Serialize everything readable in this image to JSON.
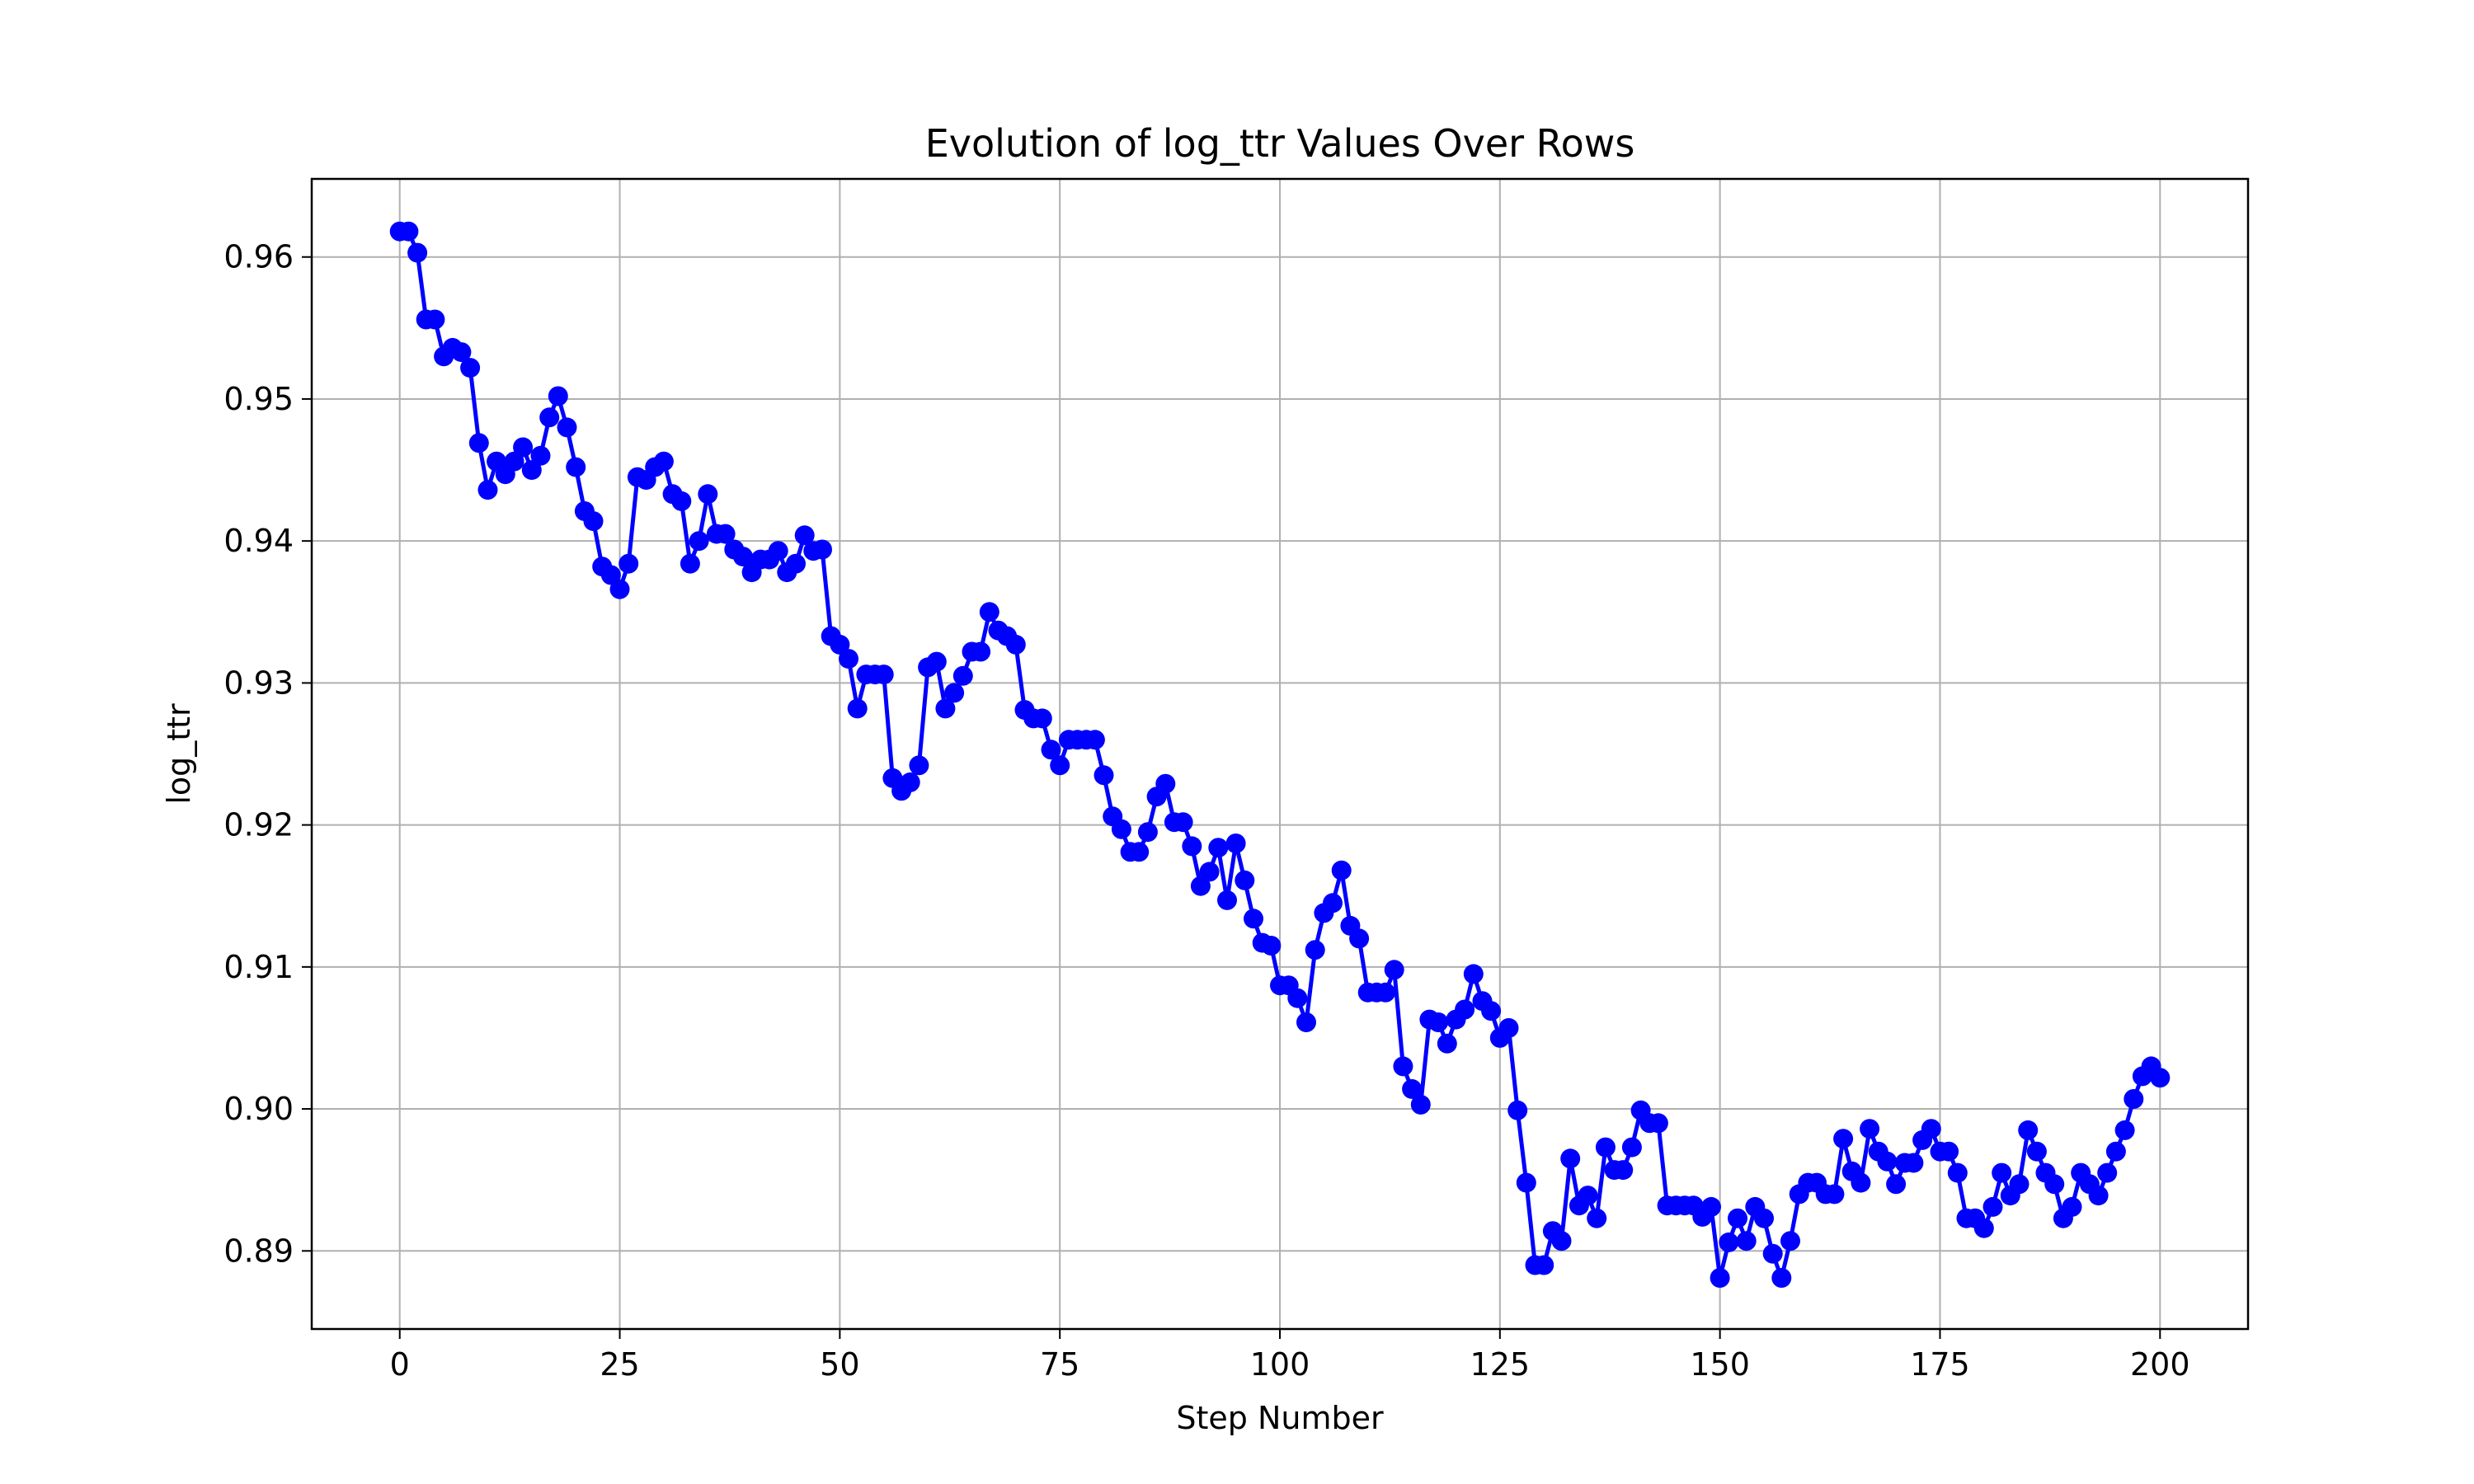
{
  "chart_data": {
    "type": "line",
    "title": "Evolution of log_ttr Values Over Rows",
    "xlabel": "Step Number",
    "ylabel": "log_ttr",
    "xlim": [
      -10,
      210
    ],
    "ylim": [
      0.8845,
      0.9655
    ],
    "xticks": [
      0,
      25,
      50,
      75,
      100,
      125,
      150,
      175,
      200
    ],
    "yticks": [
      0.89,
      0.9,
      0.91,
      0.92,
      0.93,
      0.94,
      0.95,
      0.96
    ],
    "ytick_labels": [
      "0.89",
      "0.90",
      "0.91",
      "0.92",
      "0.93",
      "0.94",
      "0.95",
      "0.96"
    ],
    "grid": true,
    "legend": "none",
    "series": [
      {
        "color": "#0000ff",
        "marker": "circle",
        "x_start": 0,
        "x_step": 1,
        "values": [
          0.9618,
          0.9618,
          0.9603,
          0.9556,
          0.9556,
          0.953,
          0.9536,
          0.9533,
          0.9522,
          0.9469,
          0.9436,
          0.9456,
          0.9447,
          0.9456,
          0.9466,
          0.945,
          0.946,
          0.9487,
          0.9502,
          0.948,
          0.9452,
          0.9421,
          0.9414,
          0.9382,
          0.9376,
          0.9366,
          0.9384,
          0.9445,
          0.9443,
          0.9452,
          0.9456,
          0.9433,
          0.9428,
          0.9384,
          0.94,
          0.9433,
          0.9405,
          0.9405,
          0.9394,
          0.9389,
          0.9378,
          0.9387,
          0.9387,
          0.9393,
          0.9378,
          0.9384,
          0.9404,
          0.9393,
          0.9394,
          0.9333,
          0.9327,
          0.9317,
          0.9282,
          0.9306,
          0.9306,
          0.9306,
          0.9233,
          0.9224,
          0.923,
          0.9242,
          0.9311,
          0.9315,
          0.9282,
          0.9293,
          0.9305,
          0.9322,
          0.9322,
          0.935,
          0.9337,
          0.9333,
          0.9327,
          0.9281,
          0.9275,
          0.9275,
          0.9253,
          0.9242,
          0.926,
          0.926,
          0.926,
          0.926,
          0.9235,
          0.9206,
          0.9197,
          0.9181,
          0.9181,
          0.9195,
          0.922,
          0.9229,
          0.9202,
          0.9202,
          0.9185,
          0.9157,
          0.9167,
          0.9184,
          0.9147,
          0.9187,
          0.9161,
          0.9134,
          0.9117,
          0.9115,
          0.9087,
          0.9087,
          0.9078,
          0.9061,
          0.9112,
          0.9138,
          0.9145,
          0.9168,
          0.9129,
          0.912,
          0.9082,
          0.9082,
          0.9082,
          0.9098,
          0.903,
          0.9014,
          0.9003,
          0.9063,
          0.9061,
          0.9046,
          0.9063,
          0.907,
          0.9095,
          0.9076,
          0.9069,
          0.905,
          0.9057,
          0.8999,
          0.8948,
          0.889,
          0.889,
          0.8914,
          0.8907,
          0.8965,
          0.8932,
          0.8939,
          0.8923,
          0.8973,
          0.8957,
          0.8957,
          0.8973,
          0.8999,
          0.899,
          0.899,
          0.8932,
          0.8932,
          0.8932,
          0.8932,
          0.8924,
          0.8931,
          0.8881,
          0.8906,
          0.8923,
          0.8907,
          0.8931,
          0.8923,
          0.8898,
          0.8881,
          0.8907,
          0.894,
          0.8948,
          0.8948,
          0.894,
          0.894,
          0.8979,
          0.8956,
          0.8948,
          0.8986,
          0.897,
          0.8963,
          0.8947,
          0.8962,
          0.8962,
          0.8978,
          0.8986,
          0.897,
          0.897,
          0.8955,
          0.8923,
          0.8923,
          0.8916,
          0.8931,
          0.8955,
          0.8939,
          0.8947,
          0.8985,
          0.897,
          0.8955,
          0.8947,
          0.8923,
          0.8931,
          0.8955,
          0.8947,
          0.8939,
          0.8955,
          0.897,
          0.8985,
          0.9007,
          0.9023,
          0.903,
          0.9022
        ]
      }
    ]
  }
}
